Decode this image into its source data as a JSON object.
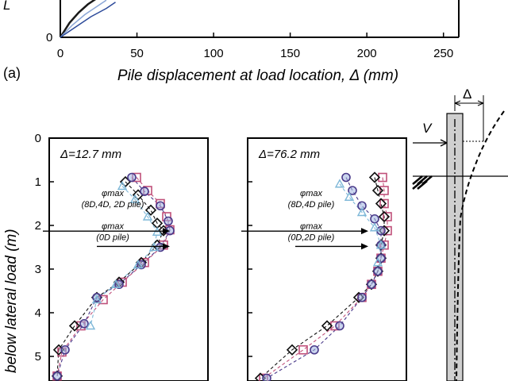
{
  "figure": {
    "panel_a_label": "(a)",
    "ylabel_fragment": "L",
    "ylabel_bottom_fragment": "below lateral load (m)",
    "diagram_v_label": "V",
    "diagram_delta_label": "Δ"
  },
  "chart_data": [
    {
      "type": "line",
      "panel": "a",
      "xlabel": "Pile displacement at load location, Δ (mm)",
      "x_ticks": [
        "0",
        "50",
        "100",
        "150",
        "200",
        "250"
      ],
      "y_tick_visible": "0",
      "xlim": [
        0,
        260
      ],
      "series": [
        {
          "x": [
            0,
            6,
            12,
            18,
            24
          ],
          "y": [
            0,
            0.35,
            0.6,
            0.8,
            0.95
          ],
          "color": "#1a1a1a"
        },
        {
          "x": [
            0,
            8,
            16,
            24,
            30
          ],
          "y": [
            0,
            0.3,
            0.55,
            0.75,
            0.9
          ],
          "color": "#8aa6d6"
        },
        {
          "x": [
            0,
            10,
            20,
            30,
            36
          ],
          "y": [
            0,
            0.25,
            0.5,
            0.7,
            0.85
          ],
          "color": "#2c4a9a"
        }
      ]
    },
    {
      "type": "scatter",
      "panel": "b-left",
      "title": "Δ=12.7 mm",
      "y_ticks": [
        "0",
        "1",
        "2",
        "3",
        "4",
        "5"
      ],
      "ylim": [
        0,
        5.6
      ],
      "annotations": [
        {
          "line1": "φmax",
          "line2": "(8D,4D, 2D pile)",
          "arrow_depth": 2.13
        },
        {
          "line1": "φmax",
          "line2": "(0D pile)",
          "arrow_depth": 2.48
        }
      ],
      "series": [
        {
          "marker": "square",
          "color": "#c0507a",
          "points": [
            [
              0.55,
              0.9
            ],
            [
              0.62,
              1.2
            ],
            [
              0.7,
              1.5
            ],
            [
              0.74,
              1.8
            ],
            [
              0.76,
              2.1
            ],
            [
              0.72,
              2.45
            ],
            [
              0.6,
              2.85
            ],
            [
              0.46,
              3.3
            ],
            [
              0.34,
              3.7
            ],
            [
              0.2,
              4.3
            ],
            [
              0.08,
              4.9
            ],
            [
              0.05,
              5.45
            ]
          ]
        },
        {
          "marker": "diamond",
          "color": "#111111",
          "points": [
            [
              0.48,
              1.0
            ],
            [
              0.56,
              1.3
            ],
            [
              0.64,
              1.65
            ],
            [
              0.68,
              1.95
            ],
            [
              0.72,
              2.12
            ],
            [
              0.68,
              2.45
            ],
            [
              0.58,
              2.85
            ],
            [
              0.44,
              3.3
            ],
            [
              0.3,
              3.65
            ],
            [
              0.16,
              4.3
            ],
            [
              0.06,
              4.85
            ],
            [
              0.05,
              5.45
            ]
          ]
        },
        {
          "marker": "circle",
          "color": "#4a3a8a",
          "points": [
            [
              0.52,
              0.9
            ],
            [
              0.6,
              1.22
            ],
            [
              0.7,
              1.55
            ],
            [
              0.75,
              1.9
            ],
            [
              0.76,
              2.12
            ],
            [
              0.7,
              2.5
            ],
            [
              0.58,
              2.9
            ],
            [
              0.44,
              3.35
            ],
            [
              0.3,
              3.65
            ],
            [
              0.22,
              4.25
            ],
            [
              0.1,
              4.85
            ],
            [
              0.05,
              5.45
            ]
          ]
        },
        {
          "marker": "triangle",
          "color": "#7fb8d8",
          "points": [
            [
              0.46,
              1.1
            ],
            [
              0.54,
              1.4
            ],
            [
              0.62,
              1.8
            ],
            [
              0.68,
              2.15
            ],
            [
              0.66,
              2.5
            ],
            [
              0.56,
              2.9
            ],
            [
              0.42,
              3.35
            ],
            [
              0.3,
              3.7
            ],
            [
              0.26,
              4.3
            ]
          ]
        }
      ]
    },
    {
      "type": "scatter",
      "panel": "b-right",
      "title": "Δ=76.2 mm",
      "ylim": [
        0,
        5.6
      ],
      "annotations": [
        {
          "line1": "φmax",
          "line2": "(8D,4D pile)",
          "arrow_depth": 2.13
        },
        {
          "line1": "φmax",
          "line2": "(0D,2D pile)",
          "arrow_depth": 2.48
        }
      ],
      "series": [
        {
          "marker": "square",
          "color": "#c0507a",
          "points": [
            [
              0.85,
              0.9
            ],
            [
              0.86,
              1.2
            ],
            [
              0.86,
              1.5
            ],
            [
              0.88,
              1.8
            ],
            [
              0.88,
              2.12
            ],
            [
              0.86,
              2.45
            ],
            [
              0.84,
              2.75
            ],
            [
              0.82,
              3.05
            ],
            [
              0.78,
              3.35
            ],
            [
              0.72,
              3.65
            ],
            [
              0.55,
              4.3
            ],
            [
              0.35,
              4.85
            ],
            [
              0.1,
              5.5
            ]
          ]
        },
        {
          "marker": "diamond",
          "color": "#111111",
          "points": [
            [
              0.8,
              0.9
            ],
            [
              0.82,
              1.2
            ],
            [
              0.84,
              1.5
            ],
            [
              0.86,
              1.8
            ],
            [
              0.86,
              2.12
            ],
            [
              0.84,
              2.45
            ],
            [
              0.84,
              2.75
            ],
            [
              0.82,
              3.05
            ],
            [
              0.78,
              3.35
            ],
            [
              0.7,
              3.65
            ],
            [
              0.5,
              4.3
            ],
            [
              0.28,
              4.85
            ],
            [
              0.08,
              5.5
            ]
          ]
        },
        {
          "marker": "circle",
          "color": "#4a3a8a",
          "points": [
            [
              0.62,
              0.9
            ],
            [
              0.66,
              1.2
            ],
            [
              0.72,
              1.55
            ],
            [
              0.8,
              1.85
            ],
            [
              0.84,
              2.12
            ],
            [
              0.84,
              2.45
            ],
            [
              0.84,
              2.75
            ],
            [
              0.82,
              3.05
            ],
            [
              0.78,
              3.35
            ],
            [
              0.72,
              3.65
            ],
            [
              0.58,
              4.3
            ],
            [
              0.42,
              4.85
            ],
            [
              0.12,
              5.5
            ]
          ]
        },
        {
          "marker": "triangle",
          "color": "#7fb8d8",
          "points": [
            [
              0.58,
              1.05
            ],
            [
              0.64,
              1.35
            ],
            [
              0.72,
              1.7
            ],
            [
              0.8,
              2.05
            ],
            [
              0.84,
              2.45
            ],
            [
              0.82,
              2.85
            ]
          ]
        }
      ]
    }
  ]
}
